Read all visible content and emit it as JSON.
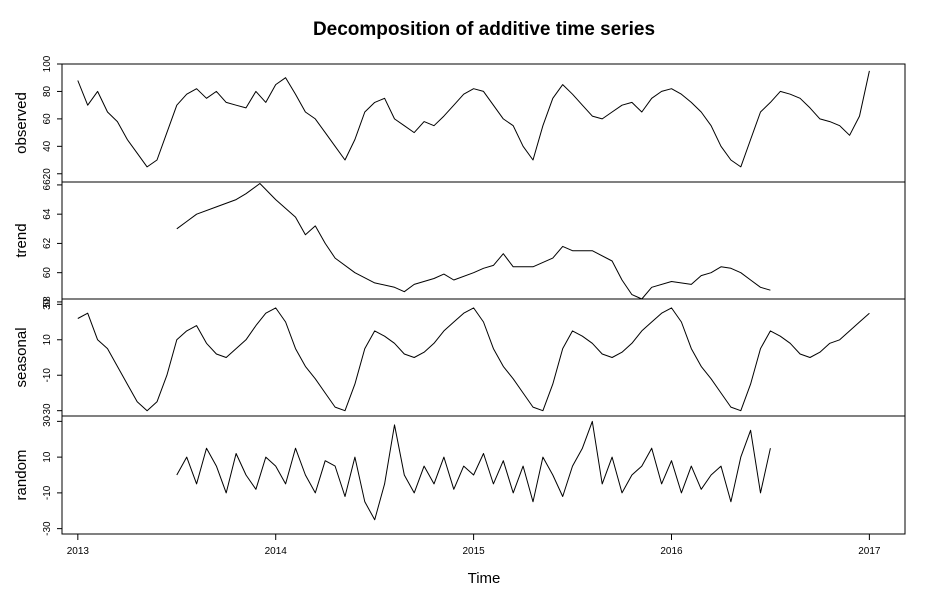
{
  "chart_data": {
    "type": "line",
    "title": "Decomposition of additive time series",
    "xlabel": "Time",
    "xlim": [
      2012.92,
      2017.18
    ],
    "x_ticks": [
      "2013",
      "2014",
      "2015",
      "2016",
      "2017"
    ],
    "grid": false,
    "panels": [
      {
        "name": "observed",
        "ylabel": "observed",
        "ylim": [
          14,
          100
        ],
        "y_ticks": [
          "20",
          "40",
          "60",
          "80",
          "100"
        ],
        "x": [
          2013.0,
          2013.05,
          2013.1,
          2013.15,
          2013.2,
          2013.25,
          2013.3,
          2013.35,
          2013.4,
          2013.45,
          2013.5,
          2013.55,
          2013.6,
          2013.65,
          2013.7,
          2013.75,
          2013.8,
          2013.85,
          2013.9,
          2013.95,
          2014.0,
          2014.05,
          2014.1,
          2014.15,
          2014.2,
          2014.25,
          2014.3,
          2014.35,
          2014.4,
          2014.45,
          2014.5,
          2014.55,
          2014.6,
          2014.65,
          2014.7,
          2014.75,
          2014.8,
          2014.85,
          2014.9,
          2014.95,
          2015.0,
          2015.05,
          2015.1,
          2015.15,
          2015.2,
          2015.25,
          2015.3,
          2015.35,
          2015.4,
          2015.45,
          2015.5,
          2015.55,
          2015.6,
          2015.65,
          2015.7,
          2015.75,
          2015.8,
          2015.85,
          2015.9,
          2015.95,
          2016.0,
          2016.05,
          2016.1,
          2016.15,
          2016.2,
          2016.25,
          2016.3,
          2016.35,
          2016.4,
          2016.45,
          2016.5,
          2016.55,
          2016.6,
          2016.65,
          2016.7,
          2016.75,
          2016.8,
          2016.85,
          2016.9,
          2016.95,
          2017.0
        ],
        "values": [
          88,
          70,
          80,
          65,
          58,
          45,
          35,
          25,
          30,
          50,
          70,
          78,
          82,
          75,
          80,
          72,
          70,
          68,
          80,
          72,
          85,
          90,
          78,
          65,
          60,
          50,
          40,
          30,
          45,
          65,
          72,
          75,
          60,
          55,
          50,
          58,
          55,
          62,
          70,
          78,
          82,
          80,
          70,
          60,
          55,
          40,
          30,
          55,
          75,
          85,
          78,
          70,
          62,
          60,
          65,
          70,
          72,
          65,
          75,
          80,
          82,
          78,
          72,
          65,
          55,
          40,
          30,
          25,
          45,
          65,
          72,
          80,
          78,
          75,
          68,
          60,
          58,
          55,
          48,
          62,
          95
        ]
      },
      {
        "name": "trend",
        "ylabel": "trend",
        "ylim": [
          58.2,
          66.2
        ],
        "y_ticks": [
          "58",
          "60",
          "62",
          "64",
          "66"
        ],
        "x": [
          2013.5,
          2013.55,
          2013.6,
          2013.7,
          2013.8,
          2013.85,
          2013.92,
          2014.0,
          2014.1,
          2014.15,
          2014.2,
          2014.25,
          2014.3,
          2014.4,
          2014.5,
          2014.6,
          2014.65,
          2014.7,
          2014.8,
          2014.85,
          2014.9,
          2015.0,
          2015.05,
          2015.1,
          2015.15,
          2015.2,
          2015.3,
          2015.4,
          2015.45,
          2015.5,
          2015.6,
          2015.7,
          2015.75,
          2015.8,
          2015.85,
          2015.9,
          2016.0,
          2016.1,
          2016.15,
          2016.2,
          2016.25,
          2016.3,
          2016.35,
          2016.4,
          2016.45,
          2016.5
        ],
        "values": [
          63.0,
          63.5,
          64.0,
          64.5,
          65.0,
          65.4,
          66.1,
          65.0,
          63.8,
          62.6,
          63.2,
          62.0,
          61.0,
          60.0,
          59.3,
          59.0,
          58.7,
          59.2,
          59.6,
          59.9,
          59.5,
          60.0,
          60.3,
          60.5,
          61.3,
          60.4,
          60.4,
          61.0,
          61.8,
          61.5,
          61.5,
          60.8,
          59.5,
          58.5,
          58.2,
          59.0,
          59.4,
          59.2,
          59.8,
          60.0,
          60.4,
          60.3,
          60.0,
          59.5,
          59.0,
          58.8
        ]
      },
      {
        "name": "seasonal",
        "ylabel": "seasonal",
        "ylim": [
          -33,
          33
        ],
        "y_ticks": [
          "-30",
          "-10",
          "10",
          "30"
        ],
        "x": [
          2013.0,
          2013.05,
          2013.1,
          2013.15,
          2013.2,
          2013.25,
          2013.3,
          2013.35,
          2013.4,
          2013.45,
          2013.5,
          2013.55,
          2013.6,
          2013.65,
          2013.7,
          2013.75,
          2013.8,
          2013.85,
          2013.9,
          2013.95,
          2014.0,
          2014.05,
          2014.1,
          2014.15,
          2014.2,
          2014.25,
          2014.3,
          2014.35,
          2014.4,
          2014.45,
          2014.5,
          2014.55,
          2014.6,
          2014.65,
          2014.7,
          2014.75,
          2014.8,
          2014.85,
          2014.9,
          2014.95,
          2015.0,
          2015.05,
          2015.1,
          2015.15,
          2015.2,
          2015.25,
          2015.3,
          2015.35,
          2015.4,
          2015.45,
          2015.5,
          2015.55,
          2015.6,
          2015.65,
          2015.7,
          2015.75,
          2015.8,
          2015.85,
          2015.9,
          2015.95,
          2016.0,
          2016.05,
          2016.1,
          2016.15,
          2016.2,
          2016.25,
          2016.3,
          2016.35,
          2016.4,
          2016.45,
          2016.5,
          2016.55,
          2016.6,
          2016.65,
          2016.7,
          2016.75,
          2016.8,
          2016.85,
          2016.9,
          2016.95,
          2017.0
        ],
        "values": [
          22,
          25,
          10,
          5,
          -5,
          -15,
          -25,
          -30,
          -25,
          -10,
          10,
          15,
          18,
          8,
          2,
          0,
          5,
          10,
          18,
          25,
          28,
          20,
          5,
          -5,
          -12,
          -20,
          -28,
          -30,
          -15,
          5,
          15,
          12,
          8,
          2,
          0,
          3,
          8,
          15,
          20,
          25,
          28,
          20,
          5,
          -5,
          -12,
          -20,
          -28,
          -30,
          -15,
          5,
          15,
          12,
          8,
          2,
          0,
          3,
          8,
          15,
          20,
          25,
          28,
          20,
          5,
          -5,
          -12,
          -20,
          -28,
          -30,
          -15,
          5,
          15,
          12,
          8,
          2,
          0,
          3,
          8,
          10,
          15,
          20,
          25
        ]
      },
      {
        "name": "random",
        "ylabel": "random",
        "ylim": [
          -33,
          33
        ],
        "y_ticks": [
          "-30",
          "-10",
          "10",
          "30"
        ],
        "x": [
          2013.5,
          2013.55,
          2013.6,
          2013.65,
          2013.7,
          2013.75,
          2013.8,
          2013.85,
          2013.9,
          2013.95,
          2014.0,
          2014.05,
          2014.1,
          2014.15,
          2014.2,
          2014.25,
          2014.3,
          2014.35,
          2014.4,
          2014.45,
          2014.5,
          2014.55,
          2014.6,
          2014.65,
          2014.7,
          2014.75,
          2014.8,
          2014.85,
          2014.9,
          2014.95,
          2015.0,
          2015.05,
          2015.1,
          2015.15,
          2015.2,
          2015.25,
          2015.3,
          2015.35,
          2015.4,
          2015.45,
          2015.5,
          2015.55,
          2015.6,
          2015.65,
          2015.7,
          2015.75,
          2015.8,
          2015.85,
          2015.9,
          2015.95,
          2016.0,
          2016.05,
          2016.1,
          2016.15,
          2016.2,
          2016.25,
          2016.3,
          2016.35,
          2016.4,
          2016.45,
          2016.5
        ],
        "values": [
          0,
          10,
          -5,
          15,
          5,
          -10,
          12,
          0,
          -8,
          10,
          5,
          -5,
          15,
          0,
          -10,
          8,
          5,
          -12,
          10,
          -15,
          -25,
          -5,
          28,
          0,
          -10,
          5,
          -5,
          10,
          -8,
          5,
          0,
          12,
          -5,
          8,
          -10,
          5,
          -15,
          10,
          0,
          -12,
          5,
          15,
          30,
          -5,
          10,
          -10,
          0,
          5,
          15,
          -5,
          8,
          -10,
          5,
          -8,
          0,
          5,
          -15,
          10,
          25,
          -10,
          15
        ]
      }
    ]
  }
}
